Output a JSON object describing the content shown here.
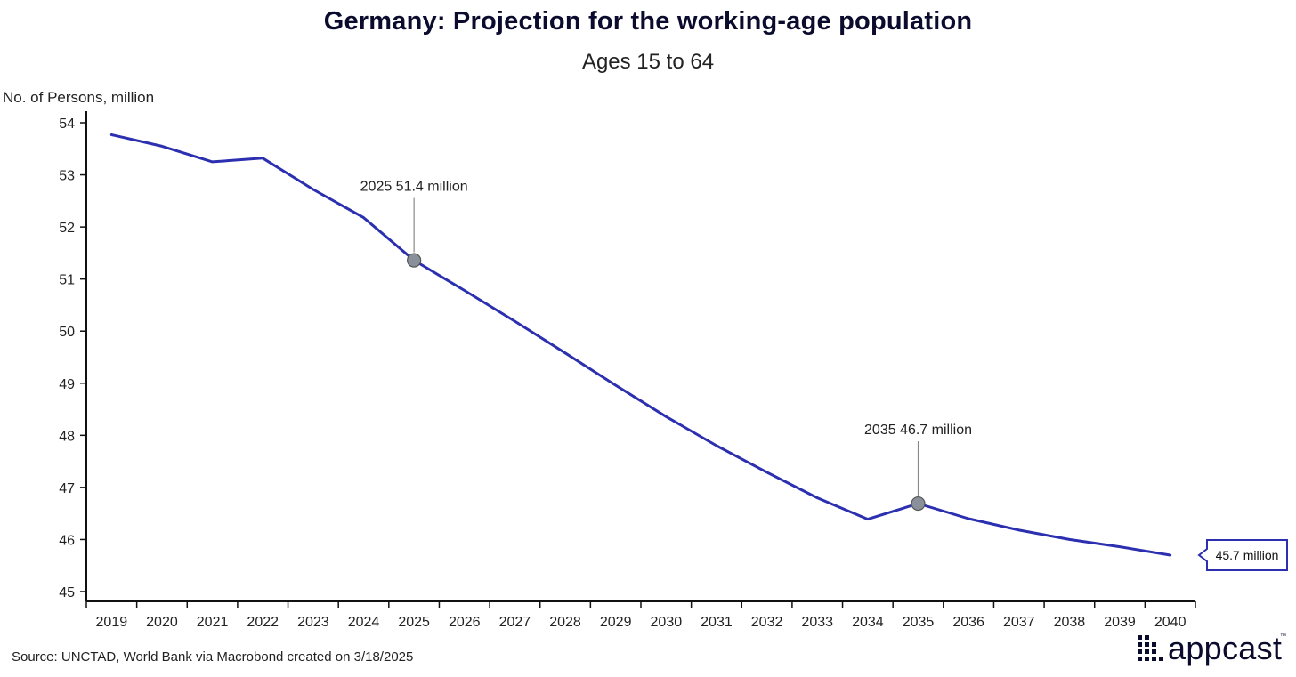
{
  "chart_data": {
    "type": "line",
    "title": "Germany: Projection for the working-age population",
    "subtitle": "Ages 15 to 64",
    "ylabel": "No. of Persons, million",
    "xlabel": "",
    "ylim": [
      45,
      54
    ],
    "yticks": [
      45,
      46,
      47,
      48,
      49,
      50,
      51,
      52,
      53,
      54
    ],
    "categories": [
      "2019",
      "2020",
      "2021",
      "2022",
      "2023",
      "2024",
      "2025",
      "2026",
      "2027",
      "2028",
      "2029",
      "2030",
      "2031",
      "2032",
      "2033",
      "2034",
      "2035",
      "2036",
      "2037",
      "2038",
      "2039",
      "2040"
    ],
    "series": [
      {
        "name": "Working-age population (15-64)",
        "color": "#2b2fb0",
        "values": [
          53.77,
          53.55,
          53.25,
          53.32,
          52.72,
          52.18,
          51.36,
          50.78,
          50.19,
          49.58,
          48.96,
          48.36,
          47.8,
          47.29,
          46.8,
          46.39,
          46.69,
          46.4,
          46.18,
          46.0,
          45.86,
          45.7
        ]
      }
    ],
    "annotations": [
      {
        "category": "2025",
        "value": 51.36,
        "label": "2025 51.4 million"
      },
      {
        "category": "2035",
        "value": 46.69,
        "label": "2035 46.7 million"
      }
    ],
    "end_label": "45.7 million",
    "grid": false
  },
  "source": "Source: UNCTAD, World Bank via Macrobond created on 3/18/2025",
  "logo": {
    "text": "appcast",
    "tm": "™"
  },
  "colors": {
    "line": "#2b2fb0",
    "marker": "#8a9099",
    "title": "#0b0b2e"
  }
}
